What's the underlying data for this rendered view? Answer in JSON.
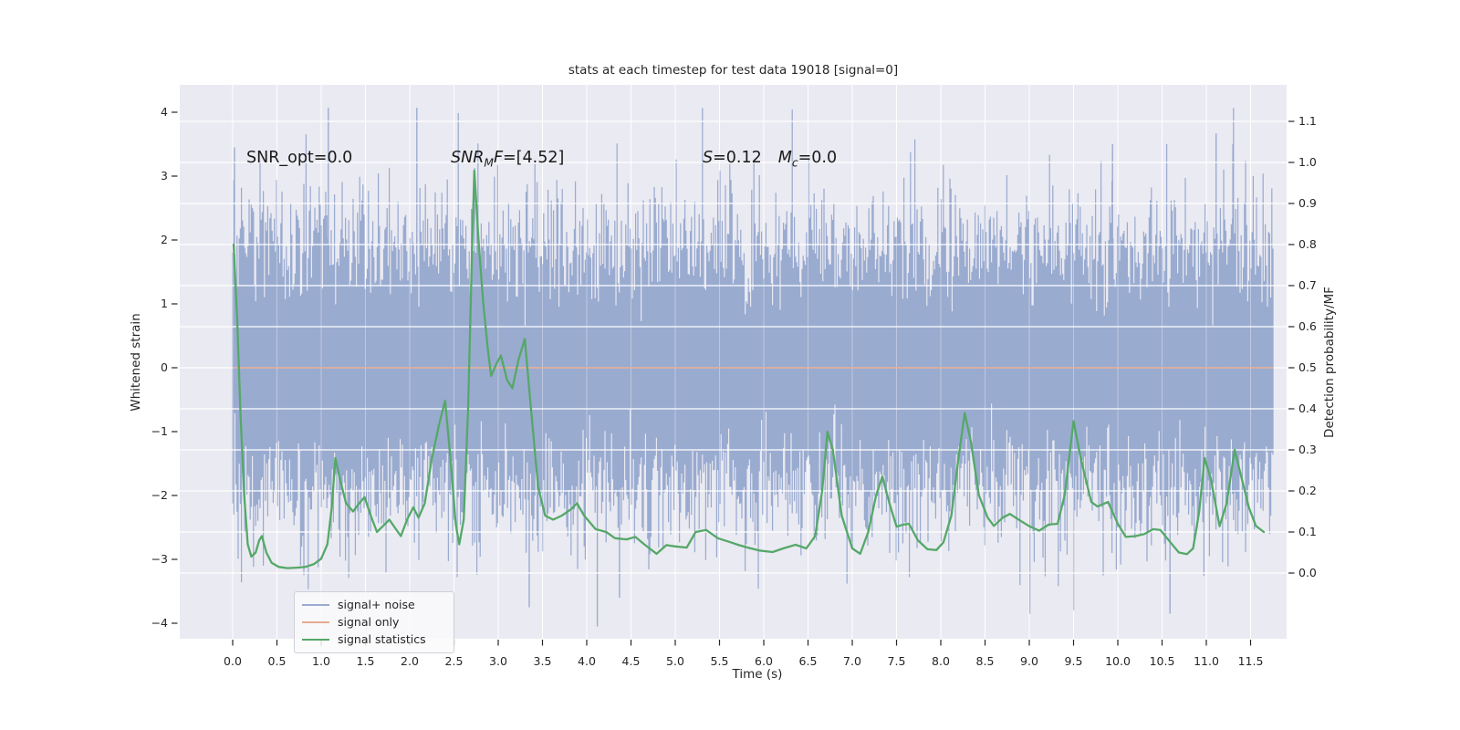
{
  "title": "stats at each timestep for test data 19018 [signal=0]",
  "colors": {
    "plot_bg": "#eaeaf2",
    "grid": "#ffffff",
    "noise_blue": "#9aabd0",
    "signal_orange": "#e7ab90",
    "stat_green": "#55a868",
    "text": "#262626"
  },
  "axes": {
    "x": {
      "label": "Time (s)",
      "tick_labels": [
        "0.0",
        "0.5",
        "1.0",
        "1.5",
        "2.0",
        "2.5",
        "3.0",
        "3.5",
        "4.0",
        "4.5",
        "5.0",
        "5.5",
        "6.0",
        "6.5",
        "7.0",
        "7.5",
        "8.0",
        "8.5",
        "9.0",
        "9.5",
        "10.0",
        "10.5",
        "11.0",
        "11.5"
      ],
      "tick_values": [
        0,
        0.5,
        1,
        1.5,
        2,
        2.5,
        3,
        3.5,
        4,
        4.5,
        5,
        5.5,
        6,
        6.5,
        7,
        7.5,
        8,
        8.5,
        9,
        9.5,
        10,
        10.5,
        11,
        11.5
      ]
    },
    "y_left": {
      "label": "Whitened strain",
      "tick_labels": [
        "4",
        "3",
        "2",
        "1",
        "0",
        "−1",
        "−2",
        "−3",
        "−4"
      ],
      "tick_values": [
        4,
        3,
        2,
        1,
        0,
        -1,
        -2,
        -3,
        -4
      ]
    },
    "y_right": {
      "label": "Detection probability/MF",
      "tick_labels": [
        "1.1",
        "1.0",
        "0.9",
        "0.8",
        "0.7",
        "0.6",
        "0.5",
        "0.4",
        "0.3",
        "0.2",
        "0.1",
        "0.0"
      ],
      "tick_values": [
        1.1,
        1.0,
        0.9,
        0.8,
        0.7,
        0.6,
        0.5,
        0.4,
        0.3,
        0.2,
        0.1,
        0.0
      ]
    }
  },
  "annotations": {
    "snr_opt": {
      "text": "SNR_opt=0.0"
    },
    "snr_mf": {
      "base": "SNR",
      "sub": "M",
      "mid": "F",
      "rest": "=[4.52]"
    },
    "stat": {
      "s_base": "S",
      "s_rest": "=0.12",
      "m_base": "M",
      "m_sub": "c",
      "m_rest": "=0.0"
    }
  },
  "legend": {
    "items": [
      {
        "label": "signal+ noise",
        "color": "#9aabd0"
      },
      {
        "label": "signal only",
        "color": "#e7ab90"
      },
      {
        "label": "signal statistics",
        "color": "#55a868"
      }
    ]
  },
  "chart_data": {
    "type": "line",
    "title": "stats at each timestep for test data 19018 [signal=0]",
    "xlabel": "Time (s)",
    "x_range": [
      -0.6,
      11.9
    ],
    "y_left_label": "Whitened strain",
    "y_left_range": [
      -4.43,
      4.43
    ],
    "y_right_label": "Detection probability/MF",
    "y_right_range": [
      -0.19,
      1.19
    ],
    "grid": "white on #eaeaf2 (seaborn darkgrid), horizontal lines follow right axis ticks",
    "legend_position": "lower left",
    "series": [
      {
        "name": "signal+ noise",
        "axis": "left",
        "color": "#9aabd0",
        "type": "stochastic_noise_band",
        "description": "Dense whitened-noise trace, zero mean, std about 1; solid band roughly +/-2 with frequent spikes to +/-3 and rare spikes to +/-4",
        "t_start": 0,
        "t_end": 11.76,
        "sigma": 1.02,
        "samples_per_column": 22,
        "seed": 19018,
        "extremes": [
          [
            0.02,
            3.45
          ],
          [
            1.08,
            4.07
          ],
          [
            2.08,
            4.07
          ],
          [
            3.35,
            -3.75
          ],
          [
            4.12,
            -4.05
          ],
          [
            4.37,
            -3.6
          ],
          [
            9.94,
            3.5
          ],
          [
            10.59,
            -3.85
          ],
          [
            11.11,
            3.67
          ],
          [
            11.3,
            3.5
          ]
        ]
      },
      {
        "name": "signal only",
        "axis": "left",
        "color": "#e7ab90",
        "type": "constant",
        "constant": 0.0,
        "t_start": 0,
        "t_end": 11.76
      },
      {
        "name": "signal statistics",
        "axis": "right",
        "color": "#55a868",
        "type": "line",
        "points": [
          [
            0.01,
            0.8
          ],
          [
            0.05,
            0.62
          ],
          [
            0.09,
            0.38
          ],
          [
            0.13,
            0.19
          ],
          [
            0.17,
            0.07
          ],
          [
            0.21,
            0.04
          ],
          [
            0.26,
            0.05
          ],
          [
            0.3,
            0.08
          ],
          [
            0.33,
            0.09
          ],
          [
            0.38,
            0.05
          ],
          [
            0.44,
            0.025
          ],
          [
            0.52,
            0.015
          ],
          [
            0.62,
            0.012
          ],
          [
            0.72,
            0.013
          ],
          [
            0.82,
            0.015
          ],
          [
            0.92,
            0.022
          ],
          [
            1.0,
            0.035
          ],
          [
            1.07,
            0.07
          ],
          [
            1.12,
            0.16
          ],
          [
            1.16,
            0.28
          ],
          [
            1.21,
            0.23
          ],
          [
            1.28,
            0.17
          ],
          [
            1.36,
            0.15
          ],
          [
            1.43,
            0.17
          ],
          [
            1.49,
            0.185
          ],
          [
            1.56,
            0.14
          ],
          [
            1.63,
            0.1
          ],
          [
            1.7,
            0.115
          ],
          [
            1.77,
            0.13
          ],
          [
            1.84,
            0.108
          ],
          [
            1.9,
            0.09
          ],
          [
            1.97,
            0.13
          ],
          [
            2.04,
            0.16
          ],
          [
            2.1,
            0.135
          ],
          [
            2.17,
            0.17
          ],
          [
            2.25,
            0.28
          ],
          [
            2.33,
            0.36
          ],
          [
            2.4,
            0.42
          ],
          [
            2.46,
            0.28
          ],
          [
            2.52,
            0.12
          ],
          [
            2.56,
            0.07
          ],
          [
            2.61,
            0.13
          ],
          [
            2.66,
            0.4
          ],
          [
            2.7,
            0.75
          ],
          [
            2.73,
            0.98
          ],
          [
            2.78,
            0.8
          ],
          [
            2.83,
            0.66
          ],
          [
            2.88,
            0.55
          ],
          [
            2.92,
            0.48
          ],
          [
            2.98,
            0.51
          ],
          [
            3.03,
            0.53
          ],
          [
            3.1,
            0.47
          ],
          [
            3.16,
            0.45
          ],
          [
            3.23,
            0.52
          ],
          [
            3.3,
            0.57
          ],
          [
            3.37,
            0.4
          ],
          [
            3.45,
            0.21
          ],
          [
            3.53,
            0.14
          ],
          [
            3.62,
            0.13
          ],
          [
            3.72,
            0.14
          ],
          [
            3.82,
            0.155
          ],
          [
            3.89,
            0.17
          ],
          [
            3.97,
            0.14
          ],
          [
            4.1,
            0.107
          ],
          [
            4.22,
            0.1
          ],
          [
            4.32,
            0.085
          ],
          [
            4.45,
            0.082
          ],
          [
            4.55,
            0.088
          ],
          [
            4.65,
            0.07
          ],
          [
            4.79,
            0.047
          ],
          [
            4.9,
            0.068
          ],
          [
            5.0,
            0.065
          ],
          [
            5.13,
            0.062
          ],
          [
            5.23,
            0.1
          ],
          [
            5.35,
            0.105
          ],
          [
            5.48,
            0.085
          ],
          [
            5.61,
            0.076
          ],
          [
            5.72,
            0.068
          ],
          [
            5.82,
            0.062
          ],
          [
            5.95,
            0.055
          ],
          [
            6.1,
            0.051
          ],
          [
            6.22,
            0.06
          ],
          [
            6.36,
            0.069
          ],
          [
            6.48,
            0.06
          ],
          [
            6.58,
            0.09
          ],
          [
            6.66,
            0.2
          ],
          [
            6.72,
            0.344
          ],
          [
            6.78,
            0.3
          ],
          [
            6.88,
            0.14
          ],
          [
            7.0,
            0.06
          ],
          [
            7.09,
            0.047
          ],
          [
            7.18,
            0.1
          ],
          [
            7.27,
            0.19
          ],
          [
            7.34,
            0.235
          ],
          [
            7.42,
            0.17
          ],
          [
            7.5,
            0.113
          ],
          [
            7.58,
            0.118
          ],
          [
            7.64,
            0.12
          ],
          [
            7.74,
            0.08
          ],
          [
            7.85,
            0.058
          ],
          [
            7.95,
            0.056
          ],
          [
            8.03,
            0.075
          ],
          [
            8.12,
            0.14
          ],
          [
            8.2,
            0.28
          ],
          [
            8.27,
            0.39
          ],
          [
            8.34,
            0.32
          ],
          [
            8.43,
            0.19
          ],
          [
            8.53,
            0.135
          ],
          [
            8.6,
            0.115
          ],
          [
            8.7,
            0.135
          ],
          [
            8.78,
            0.144
          ],
          [
            8.88,
            0.13
          ],
          [
            9.0,
            0.114
          ],
          [
            9.11,
            0.103
          ],
          [
            9.22,
            0.118
          ],
          [
            9.32,
            0.12
          ],
          [
            9.4,
            0.19
          ],
          [
            9.5,
            0.37
          ],
          [
            9.58,
            0.28
          ],
          [
            9.7,
            0.173
          ],
          [
            9.77,
            0.162
          ],
          [
            9.89,
            0.173
          ],
          [
            10.0,
            0.12
          ],
          [
            10.09,
            0.088
          ],
          [
            10.2,
            0.09
          ],
          [
            10.3,
            0.095
          ],
          [
            10.4,
            0.107
          ],
          [
            10.48,
            0.105
          ],
          [
            10.59,
            0.076
          ],
          [
            10.69,
            0.05
          ],
          [
            10.78,
            0.046
          ],
          [
            10.85,
            0.06
          ],
          [
            10.92,
            0.15
          ],
          [
            10.98,
            0.28
          ],
          [
            11.05,
            0.23
          ],
          [
            11.15,
            0.114
          ],
          [
            11.23,
            0.17
          ],
          [
            11.32,
            0.3
          ],
          [
            11.4,
            0.23
          ],
          [
            11.48,
            0.16
          ],
          [
            11.56,
            0.115
          ],
          [
            11.65,
            0.1
          ]
        ]
      }
    ],
    "text_annotations": [
      {
        "text": "SNR_opt=0.0",
        "t": 0.15,
        "value_left": 3.2
      },
      {
        "text": "SNR_MF=[4.52]",
        "t": 2.46,
        "value_left": 3.2
      },
      {
        "text": "S=0.12  Mc=0.0",
        "t": 5.3,
        "value_left": 3.2
      }
    ]
  }
}
